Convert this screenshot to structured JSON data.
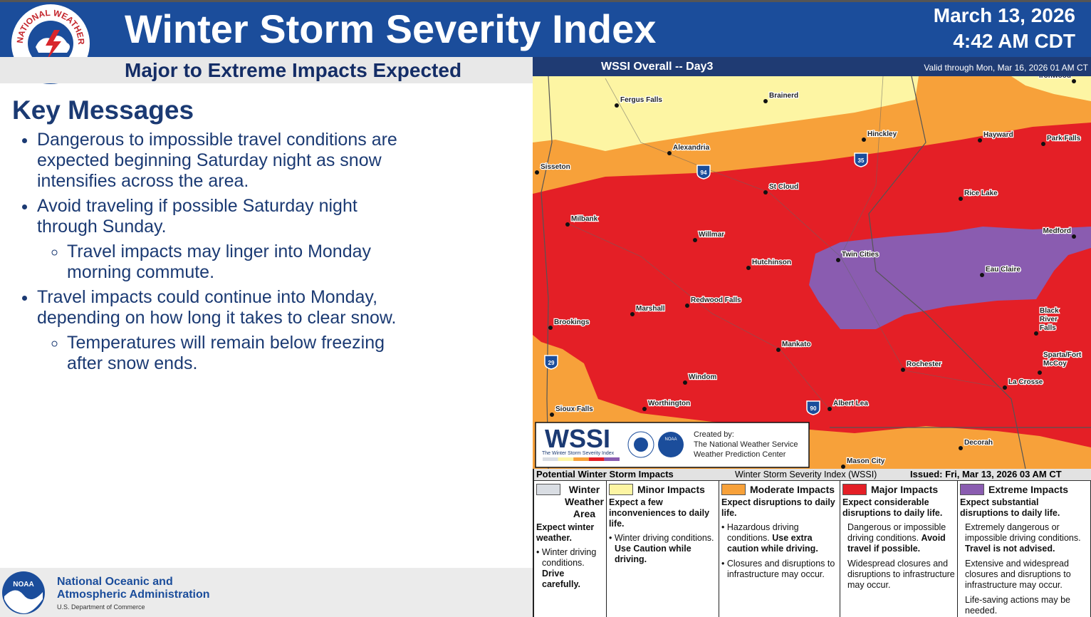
{
  "header": {
    "title": "Winter Storm Severity Index",
    "subtitle": "Major to Extreme Impacts Expected",
    "date": "March 13, 2026",
    "time": "4:42 AM CDT",
    "logo_text": "NATIONAL WEATHER SERVICE"
  },
  "key_messages": {
    "title": "Key Messages",
    "items": [
      {
        "text": "Dangerous to impossible travel conditions are expected beginning Saturday night as snow intensifies across the area."
      },
      {
        "text": "Avoid traveling if possible Saturday night through Sunday.",
        "subitems": [
          "Travel impacts may linger into Monday morning commute."
        ]
      },
      {
        "text": "Travel impacts could continue into Monday, depending on how long it takes to clear snow.",
        "subitems": [
          "Temperatures will remain below freezing after snow ends."
        ]
      }
    ]
  },
  "map": {
    "title": "WSSI Overall -- Day3",
    "valid": "Valid through Mon, Mar 16, 2026 01 AM CT",
    "cities": [
      {
        "label": [
          "Ironwood"
        ]
      },
      {
        "label": [
          "Fergus Falls"
        ]
      },
      {
        "label": [
          "Brainerd"
        ]
      },
      {
        "label": [
          "Hinckley"
        ]
      },
      {
        "label": [
          "Hayward"
        ]
      },
      {
        "label": [
          "Park Falls"
        ]
      },
      {
        "label": [
          "Alexandria"
        ]
      },
      {
        "label": [
          "Sisseton"
        ]
      },
      {
        "label": [
          "St Cloud"
        ]
      },
      {
        "label": [
          "Rice Lake"
        ]
      },
      {
        "label": [
          "Milbank"
        ]
      },
      {
        "label": [
          "Willmar"
        ]
      },
      {
        "label": [
          "Medford"
        ]
      },
      {
        "label": [
          "Twin Cities"
        ]
      },
      {
        "label": [
          "Hutchinson"
        ]
      },
      {
        "label": [
          "Eau Claire"
        ]
      },
      {
        "label": [
          "Redwood Falls"
        ]
      },
      {
        "label": [
          "Marshall"
        ]
      },
      {
        "label": [
          "Black",
          "River",
          "Falls"
        ]
      },
      {
        "label": [
          "Brookings"
        ]
      },
      {
        "label": [
          "Mankato"
        ]
      },
      {
        "label": [
          "Rochester"
        ]
      },
      {
        "label": [
          "Sparta/Fort",
          "McCoy"
        ]
      },
      {
        "label": [
          "La Crosse"
        ]
      },
      {
        "label": [
          "Windom"
        ]
      },
      {
        "label": [
          "Albert Lea"
        ]
      },
      {
        "label": [
          "Worthington"
        ]
      },
      {
        "label": [
          "Sioux Falls"
        ]
      },
      {
        "label": [
          "Decorah"
        ]
      },
      {
        "label": [
          "Mason City"
        ]
      }
    ],
    "interstates": [
      "94",
      "35",
      "29",
      "90"
    ],
    "logo": {
      "name": "WSSI",
      "tagline": "The Winter Storm Severity Index",
      "created_by": "Created by:",
      "creators": [
        "The National Weather Service",
        "Weather Prediction Center"
      ],
      "noaa": "NOAA"
    }
  },
  "legend": {
    "title": "Potential Winter Storm Impacts",
    "center": "Winter Storm Severity Index (WSSI)",
    "issued": "Issued: Fri, Mar 13, 2026 03 AM CT",
    "categories": [
      {
        "name": "Winter Weather Area",
        "color": "#d9dde3",
        "summary": "Expect winter weather.",
        "details": [
          {
            "text": "Winter driving conditions.",
            "emphasis": "Drive carefully."
          }
        ]
      },
      {
        "name": "Minor Impacts",
        "color": "#fdf5a3",
        "summary": "Expect a few inconveniences to daily life.",
        "details": [
          {
            "text": "Winter driving conditions.",
            "emphasis": "Use Caution while driving."
          }
        ]
      },
      {
        "name": "Moderate Impacts",
        "color": "#f7a13a",
        "summary": "Expect disruptions to daily life.",
        "details": [
          {
            "text": "Hazardous driving conditions.",
            "emphasis": "Use extra caution while driving."
          },
          {
            "text": "Closures and disruptions to infrastructure may occur."
          }
        ]
      },
      {
        "name": "Major Impacts",
        "color": "#e41f26",
        "summary": "Expect considerable disruptions to daily life.",
        "details": [
          {
            "text": "Dangerous or impossible driving conditions.",
            "emphasis": "Avoid travel if possible."
          },
          {
            "text": "Widespread closures and disruptions to infrastructure may occur."
          }
        ]
      },
      {
        "name": "Extreme Impacts",
        "color": "#8a5cb0",
        "summary": "Expect substantial disruptions to daily life.",
        "details": [
          {
            "text": "Extremely dangerous or impossible driving conditions.",
            "emphasis": "Travel is not advised."
          },
          {
            "text": "Extensive and widespread closures and disruptions to infrastructure may occur."
          },
          {
            "text": "Life-saving actions may be needed."
          }
        ]
      }
    ]
  },
  "footer": {
    "org": [
      "National Oceanic and",
      "Atmospheric Administration"
    ],
    "dept": "U.S. Department of Commerce",
    "logo": "NOAA"
  }
}
